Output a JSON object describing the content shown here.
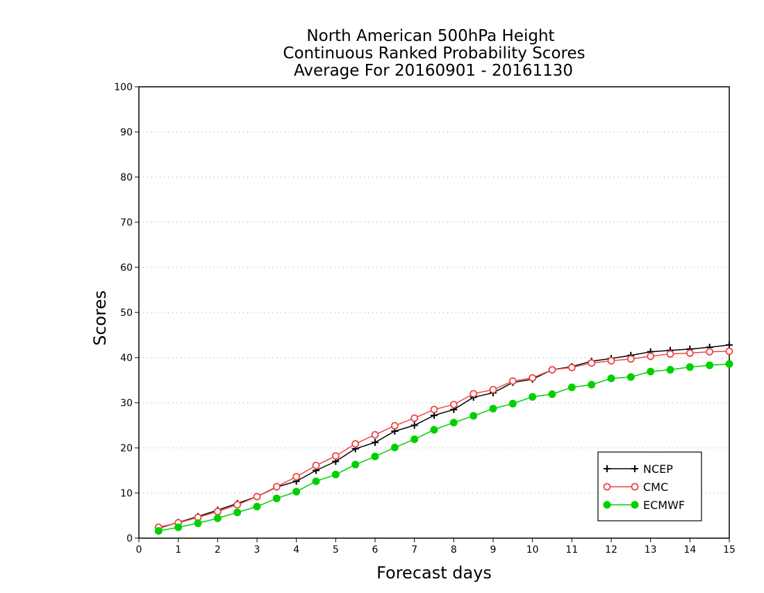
{
  "chart_data": {
    "type": "line",
    "title_lines": [
      "North American 500hPa Height",
      "Continuous Ranked Probability Scores",
      "Average For 20160901 - 20161130"
    ],
    "xlabel": "Forecast days",
    "ylabel": "Scores",
    "xlim": [
      0,
      15
    ],
    "ylim": [
      0,
      100
    ],
    "x_ticks": [
      0,
      1,
      2,
      3,
      4,
      5,
      6,
      7,
      8,
      9,
      10,
      11,
      12,
      13,
      14,
      15
    ],
    "y_ticks": [
      0,
      10,
      20,
      30,
      40,
      50,
      60,
      70,
      80,
      90,
      100
    ],
    "grid": {
      "horizontal": true,
      "vertical": false,
      "style": "dotted"
    },
    "legend_position": "bottom-right",
    "x": [
      0.5,
      1.0,
      1.5,
      2.0,
      2.5,
      3.0,
      3.5,
      4.0,
      4.5,
      5.0,
      5.5,
      6.0,
      6.5,
      7.0,
      7.5,
      8.0,
      8.5,
      9.0,
      9.5,
      10.0,
      10.5,
      11.0,
      11.5,
      12.0,
      12.5,
      13.0,
      13.5,
      14.0,
      14.5,
      15.0
    ],
    "series": [
      {
        "name": "NCEP",
        "color": "#000000",
        "marker": "plus",
        "values": [
          2.2,
          3.5,
          4.8,
          6.2,
          7.7,
          9.2,
          11.3,
          12.6,
          15.0,
          17.0,
          19.8,
          21.2,
          23.7,
          25.0,
          27.2,
          28.5,
          31.2,
          32.2,
          34.5,
          35.2,
          37.3,
          38.0,
          39.2,
          39.8,
          40.5,
          41.3,
          41.6,
          41.9,
          42.3,
          42.8
        ]
      },
      {
        "name": "CMC",
        "color": "#ef4444",
        "marker": "open-circle",
        "values": [
          2.4,
          3.4,
          4.6,
          5.9,
          7.4,
          9.2,
          11.4,
          13.6,
          16.1,
          18.2,
          20.9,
          22.9,
          24.9,
          26.6,
          28.5,
          29.6,
          32.0,
          32.9,
          34.8,
          35.5,
          37.3,
          37.8,
          38.8,
          39.3,
          39.7,
          40.3,
          40.8,
          41.0,
          41.3,
          41.4
        ]
      },
      {
        "name": "ECMWF",
        "color": "#00d000",
        "marker": "filled-circle",
        "values": [
          1.6,
          2.4,
          3.3,
          4.4,
          5.7,
          7.0,
          8.8,
          10.3,
          12.6,
          14.1,
          16.3,
          18.1,
          20.1,
          21.9,
          24.0,
          25.6,
          27.1,
          28.7,
          29.8,
          31.3,
          31.9,
          33.4,
          34.0,
          35.4,
          35.7,
          36.9,
          37.3,
          37.9,
          38.3,
          38.6
        ]
      }
    ]
  }
}
